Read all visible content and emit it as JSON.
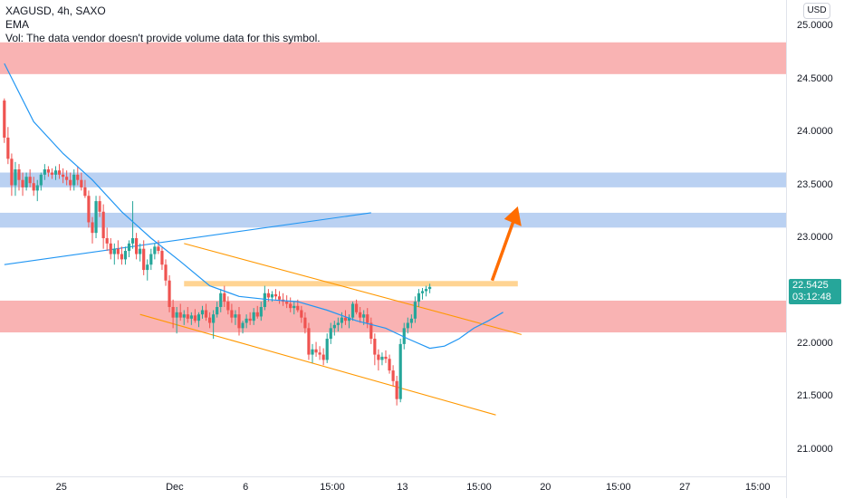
{
  "header": {
    "symbol_line": "XAGUSD, 4h, SAXO",
    "indicator": "EMA",
    "volume_note": "Vol: The data vendor doesn't provide volume data for this symbol."
  },
  "currency": "USD",
  "last_price": {
    "value": "22.5425",
    "countdown": "03:12:48",
    "color": "#26a69a"
  },
  "colors": {
    "up": "#26a69a",
    "down": "#ef5350",
    "resistance_zone": "#f8a6a6",
    "support_zone_blue": "#a9c6ef",
    "channel": "#ff9800",
    "ema": "#2196f3",
    "target_line": "#ffcc80",
    "arrow": "#ff6d00"
  },
  "chart_data": {
    "type": "candlestick",
    "title": "XAGUSD, 4h, SAXO",
    "y_range": [
      20.75,
      25.25
    ],
    "y_ticks": [
      "25.0000",
      "24.5000",
      "24.0000",
      "23.5000",
      "23.0000",
      "22.5000",
      "22.0000",
      "21.5000",
      "21.0000"
    ],
    "y_tick_values": [
      25.0,
      24.5,
      24.0,
      23.5,
      23.0,
      22.5,
      22.0,
      21.5,
      21.0
    ],
    "x_ticks": [
      "25",
      "Dec",
      "6",
      "15:00",
      "13",
      "15:00",
      "20",
      "15:00",
      "27",
      "15:00"
    ],
    "bar_count": 152,
    "x_tick_bars": [
      16,
      46,
      67,
      88,
      109,
      128,
      148,
      166,
      186,
      204
    ],
    "ohlc": [
      [
        24.3,
        24.32,
        23.9,
        23.95
      ],
      [
        23.95,
        24.05,
        23.7,
        23.75
      ],
      [
        23.75,
        23.8,
        23.4,
        23.5
      ],
      [
        23.5,
        23.72,
        23.4,
        23.65
      ],
      [
        23.65,
        23.7,
        23.45,
        23.55
      ],
      [
        23.55,
        23.62,
        23.4,
        23.48
      ],
      [
        23.48,
        23.62,
        23.45,
        23.58
      ],
      [
        23.58,
        23.65,
        23.48,
        23.52
      ],
      [
        23.52,
        23.58,
        23.4,
        23.45
      ],
      [
        23.45,
        23.55,
        23.35,
        23.5
      ],
      [
        23.5,
        23.62,
        23.45,
        23.6
      ],
      [
        23.6,
        23.7,
        23.55,
        23.65
      ],
      [
        23.65,
        23.68,
        23.58,
        23.62
      ],
      [
        23.62,
        23.66,
        23.56,
        23.6
      ],
      [
        23.6,
        23.68,
        23.55,
        23.64
      ],
      [
        23.64,
        23.7,
        23.56,
        23.6
      ],
      [
        23.6,
        23.66,
        23.52,
        23.58
      ],
      [
        23.58,
        23.64,
        23.5,
        23.55
      ],
      [
        23.55,
        23.62,
        23.45,
        23.5
      ],
      [
        23.5,
        23.65,
        23.45,
        23.6
      ],
      [
        23.6,
        23.68,
        23.5,
        23.55
      ],
      [
        23.55,
        23.62,
        23.45,
        23.48
      ],
      [
        23.48,
        23.55,
        23.38,
        23.4
      ],
      [
        23.4,
        23.45,
        23.1,
        23.15
      ],
      [
        23.15,
        23.2,
        22.95,
        23.05
      ],
      [
        23.05,
        23.4,
        23.0,
        23.35
      ],
      [
        23.35,
        23.4,
        23.2,
        23.25
      ],
      [
        23.25,
        23.32,
        22.9,
        23.0
      ],
      [
        23.0,
        23.1,
        22.88,
        22.95
      ],
      [
        22.95,
        23.0,
        22.8,
        22.85
      ],
      [
        22.85,
        22.95,
        22.75,
        22.9
      ],
      [
        22.9,
        22.98,
        22.8,
        22.85
      ],
      [
        22.85,
        22.92,
        22.75,
        22.8
      ],
      [
        22.8,
        22.92,
        22.75,
        22.88
      ],
      [
        22.88,
        22.98,
        22.82,
        22.95
      ],
      [
        22.95,
        23.35,
        22.9,
        23.0
      ],
      [
        23.0,
        23.05,
        22.8,
        22.85
      ],
      [
        22.85,
        22.95,
        22.78,
        22.9
      ],
      [
        22.9,
        22.98,
        22.65,
        22.7
      ],
      [
        22.7,
        22.8,
        22.6,
        22.75
      ],
      [
        22.75,
        22.9,
        22.7,
        22.85
      ],
      [
        22.85,
        22.95,
        22.8,
        22.92
      ],
      [
        22.92,
        22.98,
        22.85,
        22.88
      ],
      [
        22.88,
        22.92,
        22.7,
        22.75
      ],
      [
        22.75,
        22.8,
        22.55,
        22.6
      ],
      [
        22.6,
        22.65,
        22.3,
        22.35
      ],
      [
        22.35,
        22.42,
        22.15,
        22.25
      ],
      [
        22.25,
        22.35,
        22.1,
        22.3
      ],
      [
        22.3,
        22.38,
        22.22,
        22.25
      ],
      [
        22.25,
        22.32,
        22.18,
        22.28
      ],
      [
        22.28,
        22.35,
        22.2,
        22.24
      ],
      [
        22.24,
        22.3,
        22.18,
        22.27
      ],
      [
        22.27,
        22.33,
        22.2,
        22.22
      ],
      [
        22.22,
        22.3,
        22.16,
        22.28
      ],
      [
        22.28,
        22.36,
        22.24,
        22.32
      ],
      [
        22.32,
        22.38,
        22.22,
        22.25
      ],
      [
        22.25,
        22.3,
        22.15,
        22.2
      ],
      [
        22.2,
        22.32,
        22.05,
        22.28
      ],
      [
        22.28,
        22.4,
        22.25,
        22.35
      ],
      [
        22.35,
        22.52,
        22.3,
        22.48
      ],
      [
        22.48,
        22.55,
        22.35,
        22.4
      ],
      [
        22.4,
        22.45,
        22.28,
        22.32
      ],
      [
        22.32,
        22.38,
        22.2,
        22.25
      ],
      [
        22.25,
        22.32,
        22.18,
        22.28
      ],
      [
        22.28,
        22.35,
        22.08,
        22.15
      ],
      [
        22.15,
        22.22,
        22.1,
        22.2
      ],
      [
        22.2,
        22.28,
        22.15,
        22.24
      ],
      [
        22.24,
        22.3,
        22.18,
        22.22
      ],
      [
        22.22,
        22.34,
        22.18,
        22.3
      ],
      [
        22.3,
        22.36,
        22.24,
        22.26
      ],
      [
        22.26,
        22.4,
        22.22,
        22.35
      ],
      [
        22.35,
        22.55,
        22.32,
        22.48
      ],
      [
        22.48,
        22.52,
        22.4,
        22.44
      ],
      [
        22.44,
        22.5,
        22.4,
        22.47
      ],
      [
        22.47,
        22.52,
        22.42,
        22.45
      ],
      [
        22.45,
        22.5,
        22.38,
        22.42
      ],
      [
        22.42,
        22.48,
        22.36,
        22.4
      ],
      [
        22.4,
        22.46,
        22.34,
        22.38
      ],
      [
        22.38,
        22.44,
        22.3,
        22.34
      ],
      [
        22.34,
        22.4,
        22.28,
        22.36
      ],
      [
        22.36,
        22.42,
        22.3,
        22.32
      ],
      [
        22.32,
        22.36,
        22.2,
        22.25
      ],
      [
        22.25,
        22.3,
        22.1,
        22.15
      ],
      [
        22.15,
        22.2,
        21.85,
        21.9
      ],
      [
        21.9,
        22.0,
        21.82,
        21.95
      ],
      [
        21.95,
        22.02,
        21.88,
        21.92
      ],
      [
        21.92,
        21.98,
        21.85,
        21.9
      ],
      [
        21.9,
        21.96,
        21.8,
        21.85
      ],
      [
        21.85,
        22.1,
        21.82,
        22.05
      ],
      [
        22.05,
        22.2,
        22.0,
        22.15
      ],
      [
        22.15,
        22.22,
        22.08,
        22.18
      ],
      [
        22.18,
        22.25,
        22.12,
        22.2
      ],
      [
        22.2,
        22.3,
        22.15,
        22.25
      ],
      [
        22.25,
        22.32,
        22.18,
        22.22
      ],
      [
        22.22,
        22.28,
        22.15,
        22.25
      ],
      [
        22.25,
        22.4,
        22.22,
        22.38
      ],
      [
        22.38,
        22.42,
        22.28,
        22.3
      ],
      [
        22.3,
        22.35,
        22.2,
        22.25
      ],
      [
        22.25,
        22.32,
        22.18,
        22.28
      ],
      [
        22.28,
        22.34,
        22.15,
        22.2
      ],
      [
        22.2,
        22.25,
        22.0,
        22.05
      ],
      [
        22.05,
        22.1,
        21.8,
        21.9
      ],
      [
        21.9,
        21.95,
        21.75,
        21.85
      ],
      [
        21.85,
        21.92,
        21.8,
        21.88
      ],
      [
        21.88,
        21.94,
        21.82,
        21.86
      ],
      [
        21.86,
        21.9,
        21.72,
        21.75
      ],
      [
        21.75,
        21.8,
        21.6,
        21.65
      ],
      [
        21.65,
        21.7,
        21.42,
        21.48
      ],
      [
        21.48,
        22.05,
        21.45,
        22.0
      ],
      [
        22.0,
        22.2,
        21.95,
        22.15
      ],
      [
        22.15,
        22.25,
        22.1,
        22.2
      ],
      [
        22.2,
        22.28,
        22.15,
        22.24
      ],
      [
        22.24,
        22.45,
        22.2,
        22.4
      ],
      [
        22.4,
        22.52,
        22.35,
        22.48
      ],
      [
        22.48,
        22.53,
        22.42,
        22.5
      ],
      [
        22.5,
        22.55,
        22.45,
        22.52
      ],
      [
        22.52,
        22.57,
        22.48,
        22.54
      ]
    ],
    "zones": [
      {
        "kind": "resistance",
        "low": 24.55,
        "high": 24.85
      },
      {
        "kind": "support",
        "low": 23.48,
        "high": 23.62
      },
      {
        "kind": "support",
        "low": 23.1,
        "high": 23.24
      },
      {
        "kind": "resistance",
        "low": 22.11,
        "high": 22.41
      }
    ],
    "target_level": {
      "price": 22.57,
      "from_bar": 49,
      "to_bar": 140
    },
    "trend_lines": [
      {
        "name": "blue",
        "from": [
          0,
          22.75
        ],
        "to": [
          100,
          23.24
        ]
      },
      {
        "name": "channel-top",
        "from": [
          49,
          22.95
        ],
        "to": [
          141,
          22.09
        ]
      },
      {
        "name": "channel-bottom",
        "from": [
          37,
          22.28
        ],
        "to": [
          134,
          21.33
        ]
      }
    ],
    "ema_points": [
      [
        0,
        24.65
      ],
      [
        8,
        24.1
      ],
      [
        16,
        23.8
      ],
      [
        24,
        23.55
      ],
      [
        32,
        23.25
      ],
      [
        40,
        23.0
      ],
      [
        48,
        22.78
      ],
      [
        56,
        22.55
      ],
      [
        64,
        22.45
      ],
      [
        72,
        22.42
      ],
      [
        80,
        22.4
      ],
      [
        88,
        22.32
      ],
      [
        96,
        22.22
      ],
      [
        104,
        22.15
      ],
      [
        110,
        22.05
      ],
      [
        116,
        21.96
      ],
      [
        120,
        21.98
      ],
      [
        124,
        22.05
      ],
      [
        128,
        22.15
      ],
      [
        132,
        22.22
      ],
      [
        136,
        22.3
      ]
    ],
    "arrow": {
      "from": [
        133,
        22.6
      ],
      "to": [
        140,
        23.3
      ]
    }
  }
}
